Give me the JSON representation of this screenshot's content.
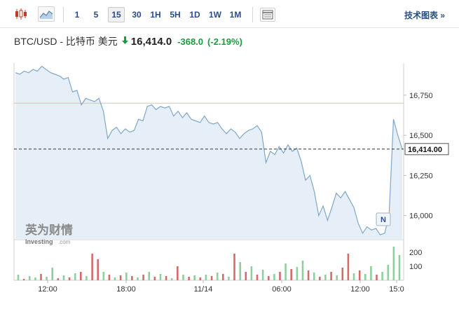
{
  "toolbar": {
    "candle_icon": "candlestick-icon",
    "area_icon": "area-chart-icon",
    "table_icon": "table-icon",
    "periods": [
      "1",
      "5",
      "15",
      "30",
      "1H",
      "5H",
      "1D",
      "1W",
      "1M"
    ],
    "active_period": "15",
    "tech_link": "技术图表 »"
  },
  "quote": {
    "name": "BTC/USD - 比特币 美元",
    "arrow": "down-arrow-icon",
    "price": "16,414.0",
    "change": "-368.0",
    "change_pct": "(-2.19%)",
    "change_color": "#1a9c3c"
  },
  "watermark": {
    "logo_cn": "英为财情",
    "logo_en": "Investing",
    "logo_domain": ".com"
  },
  "marker": {
    "label": "N"
  },
  "chart_data": {
    "type": "area",
    "price_axis": {
      "ticks": [
        16750,
        16500,
        16250,
        16000
      ],
      "tick_labels": [
        "16,750",
        "16,500",
        "16,250",
        "16,000"
      ],
      "range": [
        15850,
        16950
      ]
    },
    "current_price": 16414,
    "current_price_label": "16,414.00",
    "reference_line": 16700,
    "time_labels": [
      "12:00",
      "18:00",
      "11/14",
      "06:00",
      "12:00",
      "15:0"
    ],
    "price_series": [
      16890,
      16880,
      16900,
      16890,
      16910,
      16900,
      16930,
      16910,
      16890,
      16880,
      16870,
      16850,
      16860,
      16770,
      16780,
      16690,
      16730,
      16720,
      16710,
      16730,
      16650,
      16480,
      16530,
      16550,
      16510,
      16540,
      16520,
      16530,
      16600,
      16590,
      16680,
      16690,
      16660,
      16680,
      16670,
      16680,
      16620,
      16650,
      16610,
      16640,
      16600,
      16590,
      16580,
      16620,
      16580,
      16570,
      16580,
      16540,
      16510,
      16540,
      16520,
      16480,
      16510,
      16530,
      16540,
      16560,
      16520,
      16330,
      16400,
      16380,
      16430,
      16390,
      16440,
      16400,
      16420,
      16340,
      16220,
      16250,
      16150,
      16000,
      16060,
      15970,
      16050,
      16140,
      16110,
      16150,
      16100,
      16050,
      15950,
      15890,
      15930,
      15910,
      15920,
      15880,
      15890,
      16000,
      16600,
      16500,
      16414
    ],
    "volume_axis": {
      "ticks": [
        200,
        100
      ],
      "tick_labels": [
        "200",
        "100"
      ],
      "range": [
        0,
        260
      ]
    },
    "volume_series": [
      {
        "v": 40,
        "up": true
      },
      {
        "v": 10,
        "up": false
      },
      {
        "v": 30,
        "up": true
      },
      {
        "v": 20,
        "up": true
      },
      {
        "v": 45,
        "up": false
      },
      {
        "v": 25,
        "up": true
      },
      {
        "v": 90,
        "up": true
      },
      {
        "v": 15,
        "up": false
      },
      {
        "v": 35,
        "up": true
      },
      {
        "v": 20,
        "up": false
      },
      {
        "v": 50,
        "up": true
      },
      {
        "v": 60,
        "up": false
      },
      {
        "v": 30,
        "up": true
      },
      {
        "v": 190,
        "up": false
      },
      {
        "v": 150,
        "up": false
      },
      {
        "v": 60,
        "up": true
      },
      {
        "v": 40,
        "up": false
      },
      {
        "v": 20,
        "up": true
      },
      {
        "v": 35,
        "up": false
      },
      {
        "v": 55,
        "up": true
      },
      {
        "v": 30,
        "up": false
      },
      {
        "v": 20,
        "up": true
      },
      {
        "v": 40,
        "up": false
      },
      {
        "v": 60,
        "up": true
      },
      {
        "v": 25,
        "up": false
      },
      {
        "v": 45,
        "up": true
      },
      {
        "v": 30,
        "up": false
      },
      {
        "v": 15,
        "up": true
      },
      {
        "v": 100,
        "up": false
      },
      {
        "v": 40,
        "up": true
      },
      {
        "v": 25,
        "up": false
      },
      {
        "v": 35,
        "up": true
      },
      {
        "v": 20,
        "up": false
      },
      {
        "v": 40,
        "up": true
      },
      {
        "v": 30,
        "up": false
      },
      {
        "v": 55,
        "up": true
      },
      {
        "v": 45,
        "up": false
      },
      {
        "v": 25,
        "up": true
      },
      {
        "v": 190,
        "up": false
      },
      {
        "v": 130,
        "up": true
      },
      {
        "v": 60,
        "up": false
      },
      {
        "v": 100,
        "up": true
      },
      {
        "v": 40,
        "up": false
      },
      {
        "v": 75,
        "up": true
      },
      {
        "v": 30,
        "up": false
      },
      {
        "v": 45,
        "up": true
      },
      {
        "v": 60,
        "up": false
      },
      {
        "v": 120,
        "up": true
      },
      {
        "v": 80,
        "up": false
      },
      {
        "v": 95,
        "up": true
      },
      {
        "v": 140,
        "up": true
      },
      {
        "v": 70,
        "up": false
      },
      {
        "v": 55,
        "up": true
      },
      {
        "v": 25,
        "up": false
      },
      {
        "v": 40,
        "up": true
      },
      {
        "v": 60,
        "up": false
      },
      {
        "v": 35,
        "up": true
      },
      {
        "v": 90,
        "up": false
      },
      {
        "v": 190,
        "up": false
      },
      {
        "v": 50,
        "up": true
      },
      {
        "v": 70,
        "up": false
      },
      {
        "v": 45,
        "up": true
      },
      {
        "v": 100,
        "up": true
      },
      {
        "v": 40,
        "up": false
      },
      {
        "v": 60,
        "up": true
      },
      {
        "v": 110,
        "up": true
      },
      {
        "v": 240,
        "up": true
      },
      {
        "v": 180,
        "up": true
      }
    ],
    "colors": {
      "line": "#7fa7c9",
      "area": "#e6eff7",
      "up": "#8fcf9e",
      "down": "#d46b6b",
      "reference": "#f0b8a8"
    }
  }
}
